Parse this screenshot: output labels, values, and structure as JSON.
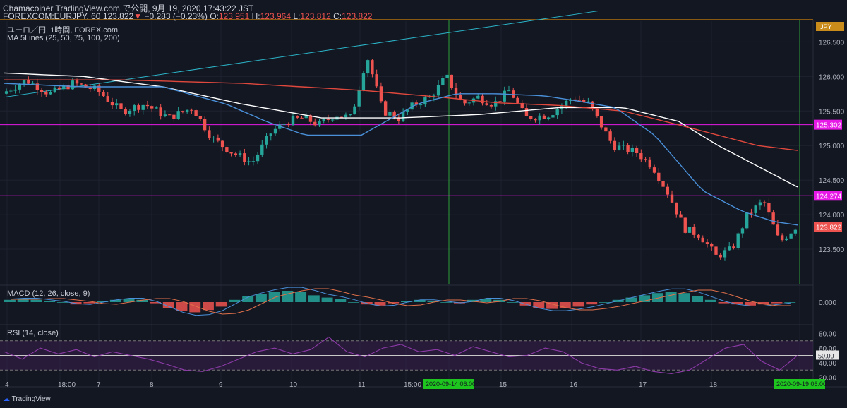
{
  "header": {
    "line1": "Chamacoiner TradingView.com で公開, 9月 19, 2020 17:43:22 JST",
    "symbol": "FOREXCOM:EURJPY, 60",
    "last": "123.822",
    "arrow": "▼",
    "change": "−0.283 (−0.23%)",
    "o_label": "O:",
    "o_value": "123.951",
    "h_label": "H:",
    "h_value": "123.964",
    "l_label": "L:",
    "l_value": "123.812",
    "c_label": "C:",
    "c_value": "123.822"
  },
  "legend": {
    "subtitle": "ユーロ／円, 1時間, FOREX.com",
    "ma_label": "MA 5Lines (25, 50, 75, 100, 200)",
    "macd_label": "MACD (12, 26, close, 9)",
    "rsi_label": "RSI (14, close)"
  },
  "footer": {
    "brand": "TradingView"
  },
  "colors": {
    "background": "#131722",
    "up": "#26a69a",
    "down": "#ef5350",
    "ma_short": "#4a90d9",
    "ma_mid": "#e0483d",
    "ma_long": "#ffffff",
    "trendline": "#2bb4c8",
    "support": "#e619e6",
    "resistance": "#ff9800",
    "vline": "#2e9f3a",
    "rsi_line": "#8e3ba8"
  },
  "chart_data": [
    {
      "type": "candlestick",
      "currency_badge": "JPY",
      "x_ticks": [
        "4",
        "18:00",
        "7",
        "8",
        "9",
        "10",
        "11",
        "15:00",
        "2020-09-14  06:00",
        "15",
        "16",
        "17",
        "18",
        "2020-09-19  06:00"
      ],
      "y_ticks": [
        "126.500",
        "126.000",
        "125.500",
        "125.000",
        "124.500",
        "124.000",
        "123.500"
      ],
      "ylim": [
        123.0,
        126.8
      ],
      "horizontal_levels": [
        {
          "value": 125.302,
          "label": "125.302",
          "kind": "support"
        },
        {
          "value": 124.274,
          "label": "124.274",
          "kind": "support"
        },
        {
          "value": 126.82,
          "kind": "resistance"
        }
      ],
      "last_price": {
        "value": 123.822,
        "label": "123.822"
      },
      "trendline": {
        "x": [
          0,
          0.75
        ],
        "y": [
          125.7,
          126.95
        ]
      },
      "close_path": {
        "x": [
          0,
          0.03,
          0.06,
          0.09,
          0.12,
          0.15,
          0.18,
          0.21,
          0.24,
          0.265,
          0.29,
          0.315,
          0.34,
          0.36,
          0.38,
          0.4,
          0.42,
          0.44,
          0.46,
          0.48,
          0.5,
          0.52,
          0.54,
          0.56,
          0.58,
          0.6,
          0.62,
          0.64,
          0.66,
          0.69,
          0.72,
          0.74,
          0.77,
          0.8,
          0.82,
          0.84,
          0.86,
          0.88,
          0.9,
          0.92,
          0.94,
          0.96,
          0.98,
          1.0
        ],
        "y": [
          125.75,
          125.95,
          125.75,
          125.9,
          125.8,
          125.5,
          125.6,
          125.4,
          125.55,
          125.1,
          124.9,
          124.75,
          125.2,
          125.35,
          125.4,
          125.3,
          125.45,
          125.4,
          126.3,
          125.5,
          125.4,
          125.6,
          125.7,
          126.0,
          125.6,
          125.7,
          125.6,
          125.8,
          125.4,
          125.45,
          125.7,
          125.6,
          125.0,
          124.9,
          124.7,
          124.3,
          123.8,
          123.7,
          123.4,
          123.5,
          124.0,
          124.2,
          123.6,
          123.82
        ]
      },
      "ma_short": {
        "x": [
          0,
          0.1,
          0.2,
          0.28,
          0.33,
          0.38,
          0.45,
          0.52,
          0.57,
          0.62,
          0.68,
          0.72,
          0.77,
          0.82,
          0.88,
          0.93,
          0.97,
          1.0
        ],
        "y": [
          125.9,
          125.85,
          125.85,
          125.6,
          125.35,
          125.15,
          125.15,
          125.6,
          125.75,
          125.75,
          125.72,
          125.65,
          125.55,
          125.15,
          124.35,
          124.05,
          123.9,
          123.85
        ]
      },
      "ma_mid": {
        "x": [
          0,
          0.15,
          0.3,
          0.45,
          0.55,
          0.62,
          0.7,
          0.78,
          0.85,
          0.9,
          0.95,
          1.0
        ],
        "y": [
          125.95,
          125.95,
          125.9,
          125.8,
          125.7,
          125.62,
          125.58,
          125.5,
          125.3,
          125.15,
          125.0,
          124.93
        ]
      },
      "ma_long": {
        "x": [
          0,
          0.1,
          0.2,
          0.3,
          0.4,
          0.5,
          0.6,
          0.7,
          0.78,
          0.85,
          0.9,
          0.95,
          1.0
        ],
        "y": [
          126.05,
          126.0,
          125.85,
          125.6,
          125.4,
          125.4,
          125.45,
          125.55,
          125.55,
          125.35,
          125.0,
          124.7,
          124.4
        ]
      }
    },
    {
      "type": "bar",
      "name": "MACD (12, 26, close, 9)",
      "y_ticks": [
        "0.000"
      ],
      "histogram": [
        0.02,
        0.03,
        0.02,
        0.01,
        0.0,
        -0.02,
        -0.01,
        0.01,
        0.02,
        0.03,
        0.02,
        -0.01,
        -0.05,
        -0.08,
        -0.09,
        -0.07,
        -0.04,
        0.02,
        0.05,
        0.07,
        0.09,
        0.1,
        0.09,
        0.06,
        0.04,
        0.03,
        0.0,
        -0.02,
        -0.03,
        -0.01,
        0.01,
        0.02,
        0.01,
        0.0,
        -0.01,
        0.02,
        0.03,
        0.02,
        0.0,
        -0.03,
        -0.05,
        -0.06,
        -0.05,
        -0.04,
        -0.02,
        0.0,
        0.02,
        0.04,
        0.06,
        0.08,
        0.09,
        0.08,
        0.05,
        0.02,
        -0.01,
        -0.02,
        -0.03,
        -0.02,
        -0.01,
        0.0
      ]
    },
    {
      "type": "line",
      "name": "RSI (14, close)",
      "y_ticks": [
        "80.00",
        "60.00",
        "40.00",
        "20.00"
      ],
      "levels": [
        70,
        50,
        30
      ],
      "current": "50.00",
      "values": [
        55,
        45,
        60,
        52,
        58,
        48,
        55,
        50,
        45,
        38,
        30,
        28,
        35,
        45,
        55,
        60,
        52,
        58,
        75,
        55,
        48,
        60,
        65,
        55,
        58,
        50,
        62,
        55,
        48,
        50,
        60,
        55,
        40,
        32,
        30,
        35,
        28,
        25,
        30,
        45,
        60,
        65,
        42,
        30,
        50
      ]
    }
  ]
}
